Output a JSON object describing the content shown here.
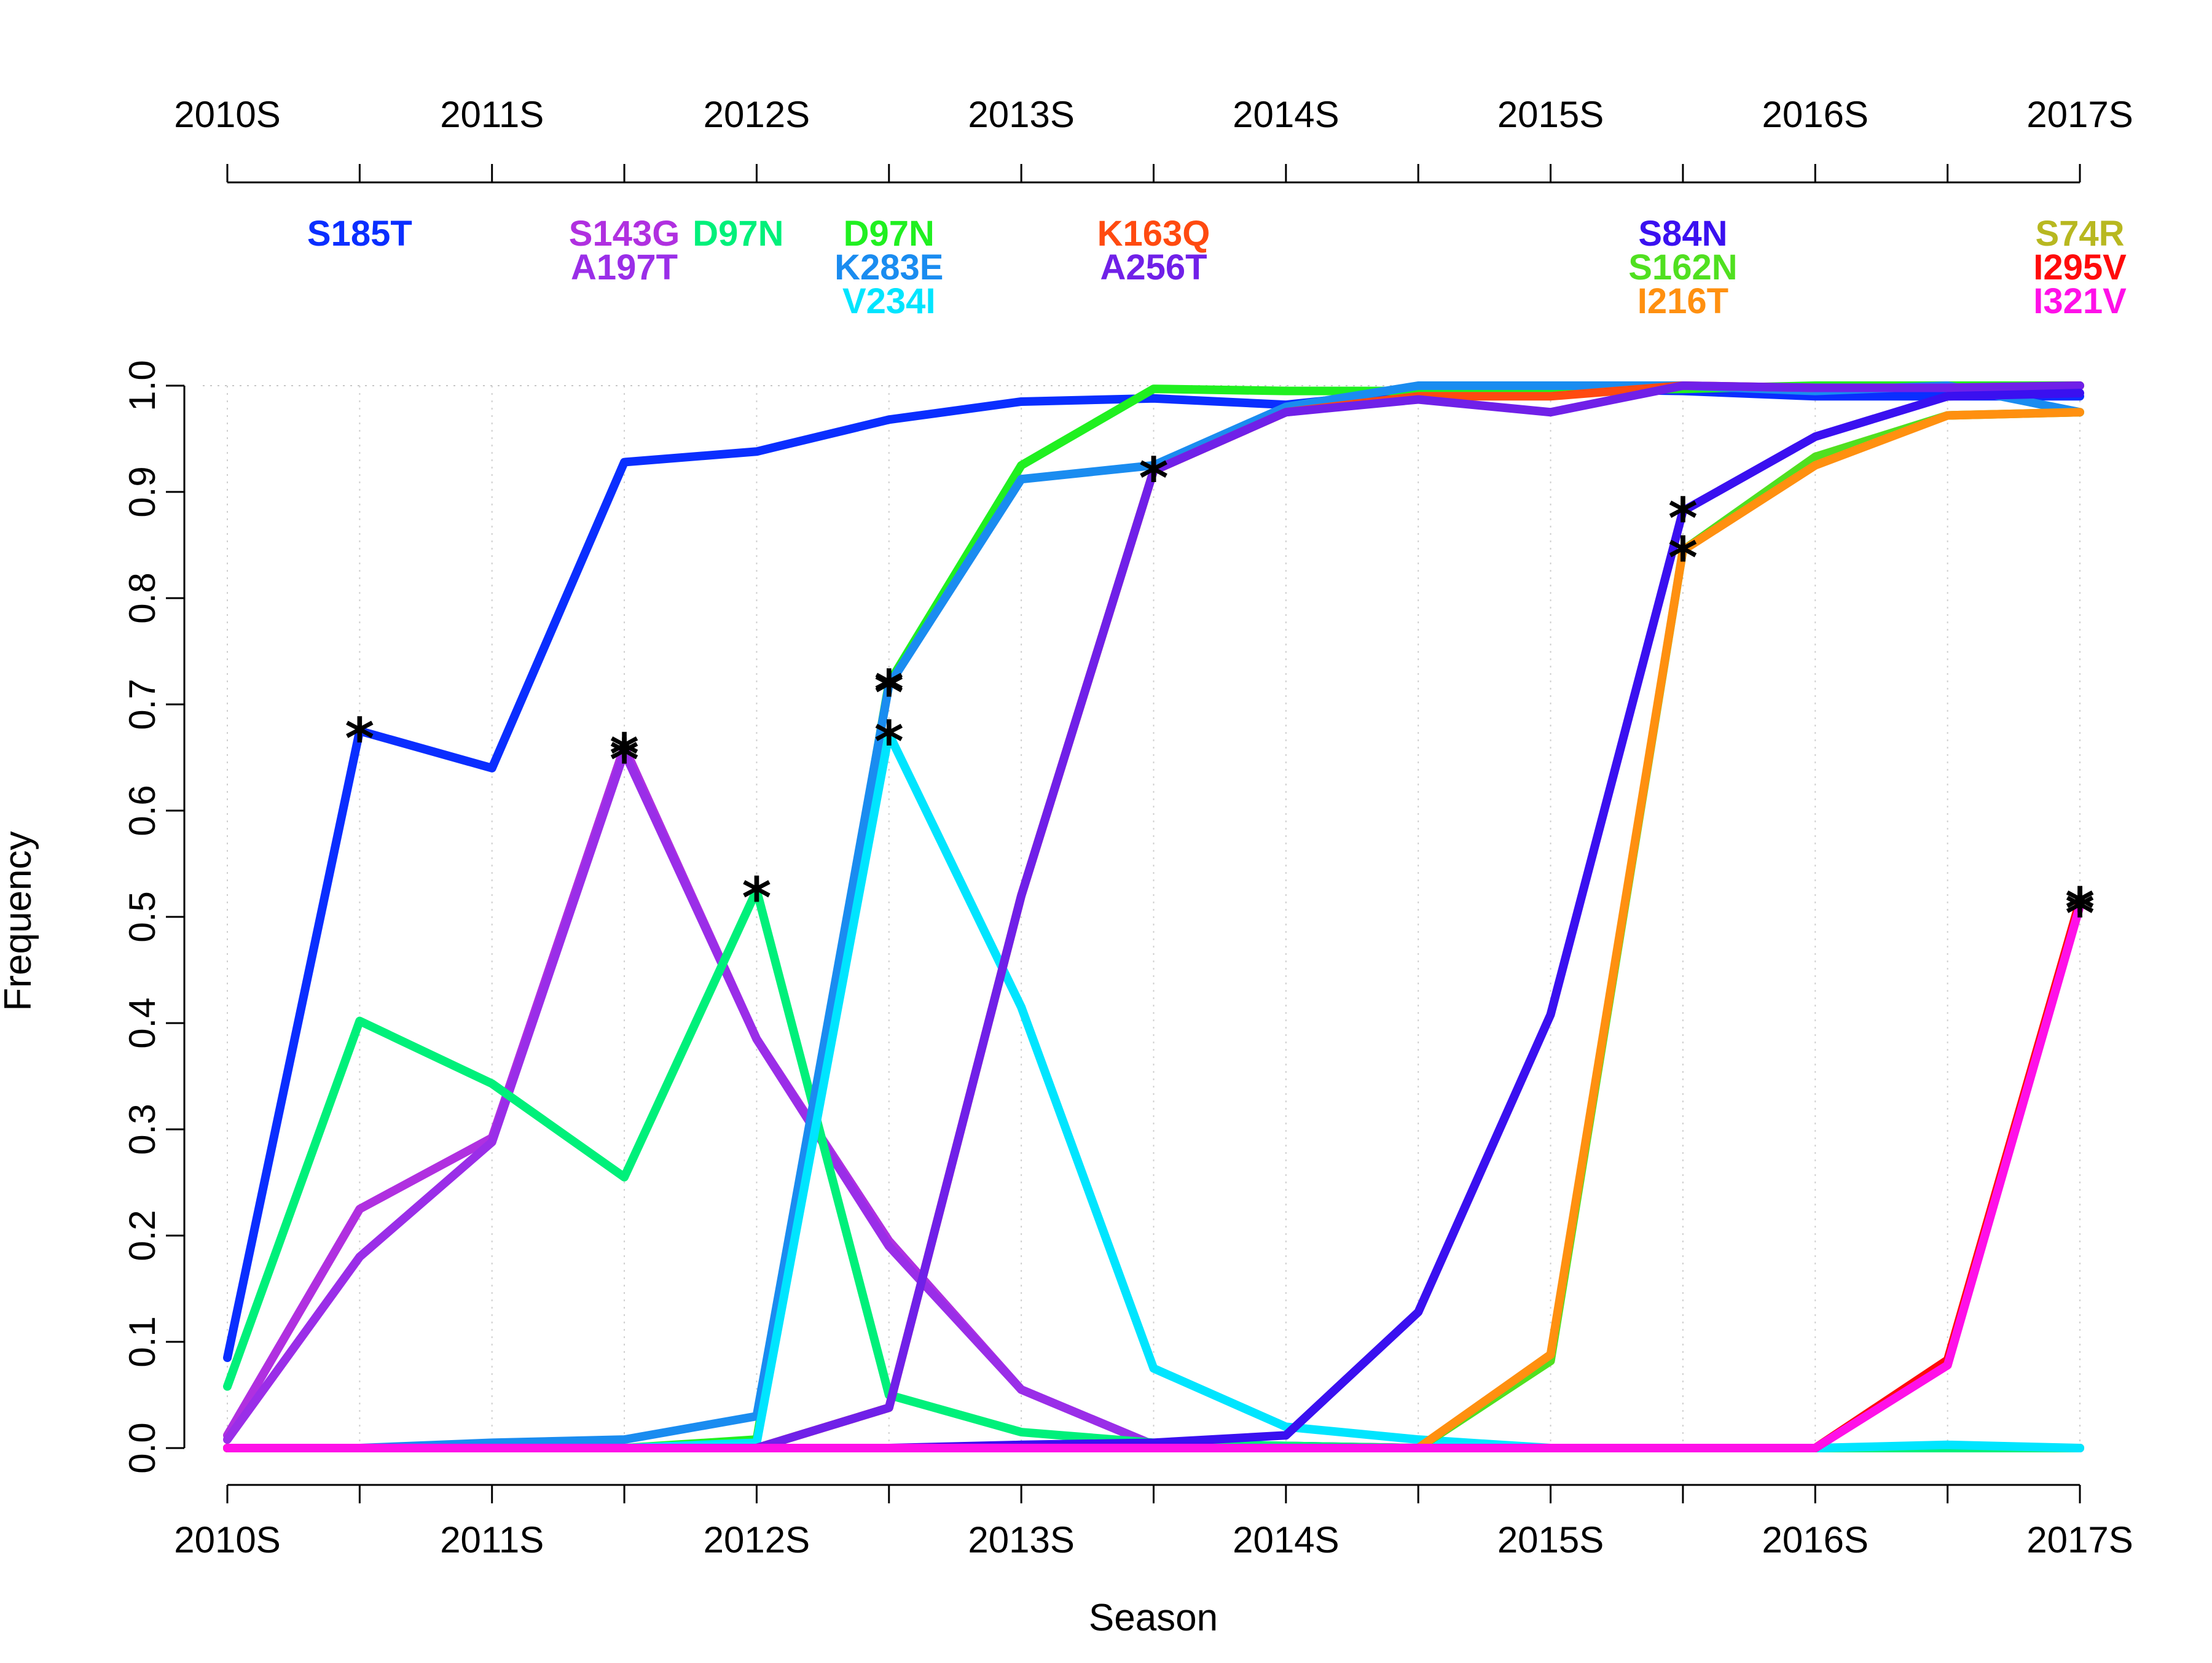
{
  "chart_data": {
    "type": "line",
    "xlabel": "Season",
    "ylabel": "Frequency",
    "x": [
      0,
      0.5,
      1,
      1.5,
      2,
      2.5,
      3,
      3.5,
      4,
      4.5,
      5,
      5.5,
      6,
      6.5,
      7
    ],
    "xtick_labels": [
      "2010S",
      "2011S",
      "2012S",
      "2013S",
      "2014S",
      "2015S",
      "2016S",
      "2017S"
    ],
    "xlim": [
      0,
      7
    ],
    "ylim": [
      0,
      1
    ],
    "yticks": [
      "0.0",
      "0.1",
      "0.2",
      "0.3",
      "0.4",
      "0.5",
      "0.6",
      "0.7",
      "0.8",
      "0.9",
      "1.0"
    ],
    "series": [
      {
        "name": "S185T",
        "color": "#0a2eff",
        "label_x": 0.5,
        "label_row": 0,
        "values": [
          0.085,
          0.675,
          0.64,
          0.928,
          0.938,
          0.968,
          0.985,
          0.988,
          0.982,
          0.995,
          0.997,
          0.995,
          0.99,
          0.99,
          0.99
        ],
        "stars": [
          0.5
        ]
      },
      {
        "name": "S143G",
        "color": "#b030e0",
        "label_x": 1.5,
        "label_row": 0,
        "values": [
          0.012,
          0.225,
          0.292,
          0.66,
          0.385,
          0.195,
          0.055,
          0.003,
          0.002,
          0.0,
          0.0,
          0.0,
          0.0,
          0.0,
          0.0
        ],
        "stars": [
          1.5
        ]
      },
      {
        "name": "A197T",
        "color": "#9a2ee8",
        "label_x": 1.5,
        "label_row": 1,
        "values": [
          0.008,
          0.18,
          0.288,
          0.655,
          0.385,
          0.19,
          0.055,
          0.003,
          0.002,
          0.0,
          0.0,
          0.0,
          0.0,
          0.0,
          0.0
        ],
        "stars": [
          1.5
        ]
      },
      {
        "name": "D97N",
        "color": "#00f07a",
        "label_x": 2.0,
        "label_row": 0,
        "values": [
          0.058,
          0.402,
          0.343,
          0.255,
          0.525,
          0.05,
          0.015,
          0.005,
          0.002,
          0.0,
          0.0,
          0.0,
          0.0,
          0.0,
          0.0
        ],
        "stars": [
          2.0
        ]
      },
      {
        "name": "D97N",
        "color": "#20f020",
        "label_x": 2.5,
        "label_row": 0,
        "values": [
          0.0,
          0.0,
          0.0,
          0.0,
          0.008,
          0.72,
          0.925,
          0.997,
          0.995,
          0.995,
          0.995,
          0.997,
          1.0,
          1.0,
          1.0
        ],
        "stars": [
          2.5
        ]
      },
      {
        "name": "K283E",
        "color": "#1a8cf0",
        "label_x": 2.5,
        "label_row": 1,
        "values": [
          0.0,
          0.0,
          0.005,
          0.008,
          0.03,
          0.718,
          0.912,
          0.925,
          0.98,
          1.0,
          1.0,
          1.0,
          0.995,
          1.0,
          0.975
        ],
        "stars": [
          2.5
        ]
      },
      {
        "name": "V234I",
        "color": "#00e5ff",
        "label_x": 2.5,
        "label_row": 2,
        "values": [
          0.0,
          0.0,
          0.0,
          0.0,
          0.005,
          0.672,
          0.415,
          0.075,
          0.02,
          0.008,
          0.0,
          0.0,
          0.0,
          0.003,
          0.0
        ],
        "stars": [
          2.5
        ]
      },
      {
        "name": "K163Q",
        "color": "#ff4a10",
        "label_x": 3.5,
        "label_row": 0,
        "values": [
          0.0,
          0.0,
          0.0,
          0.0,
          0.0,
          0.038,
          0.52,
          0.92,
          0.975,
          0.99,
          0.99,
          1.0,
          0.998,
          0.998,
          1.0
        ],
        "stars": [
          3.5
        ]
      },
      {
        "name": "A256T",
        "color": "#7020e8",
        "label_x": 3.5,
        "label_row": 1,
        "values": [
          0.0,
          0.0,
          0.0,
          0.0,
          0.0,
          0.038,
          0.52,
          0.92,
          0.975,
          0.987,
          0.975,
          1.0,
          0.998,
          0.998,
          1.0
        ],
        "stars": [
          3.5
        ]
      },
      {
        "name": "S84N",
        "color": "#3a10f0",
        "label_x": 5.5,
        "label_row": 0,
        "values": [
          0.0,
          0.0,
          0.0,
          0.0,
          0.0,
          0.0,
          0.003,
          0.005,
          0.012,
          0.128,
          0.408,
          0.882,
          0.952,
          0.99,
          0.993
        ],
        "stars": [
          5.5
        ]
      },
      {
        "name": "S162N",
        "color": "#50e020",
        "label_x": 5.5,
        "label_row": 1,
        "values": [
          0.0,
          0.0,
          0.0,
          0.0,
          0.0,
          0.0,
          0.0,
          0.0,
          0.0,
          0.0,
          0.082,
          0.845,
          0.933,
          0.972,
          0.975
        ],
        "stars": [
          5.5
        ]
      },
      {
        "name": "I216T",
        "color": "#ff9010",
        "label_x": 5.5,
        "label_row": 2,
        "values": [
          0.0,
          0.0,
          0.0,
          0.0,
          0.0,
          0.0,
          0.0,
          0.0,
          0.0,
          0.0,
          0.088,
          0.845,
          0.925,
          0.972,
          0.975
        ],
        "stars": [
          5.5
        ]
      },
      {
        "name": "S74R",
        "color": "#b8b820",
        "label_x": 7.0,
        "label_row": 0,
        "values": [
          0.0,
          0.0,
          0.0,
          0.0,
          0.0,
          0.0,
          0.0,
          0.0,
          0.0,
          0.0,
          0.0,
          0.0,
          0.0,
          0.08,
          0.515
        ],
        "stars": [
          7.0
        ]
      },
      {
        "name": "I295V",
        "color": "#ff0a0a",
        "label_x": 7.0,
        "label_row": 1,
        "values": [
          0.0,
          0.0,
          0.0,
          0.0,
          0.0,
          0.0,
          0.0,
          0.0,
          0.0,
          0.0,
          0.0,
          0.0,
          0.0,
          0.083,
          0.515
        ],
        "stars": [
          7.0
        ]
      },
      {
        "name": "I321V",
        "color": "#ff10e8",
        "label_x": 7.0,
        "label_row": 2,
        "values": [
          0.0,
          0.0,
          0.0,
          0.0,
          0.0,
          0.0,
          0.0,
          0.0,
          0.0,
          0.0,
          0.0,
          0.0,
          0.0,
          0.078,
          0.51
        ],
        "stars": [
          7.0
        ]
      }
    ],
    "grid": true,
    "top_axis": true
  }
}
